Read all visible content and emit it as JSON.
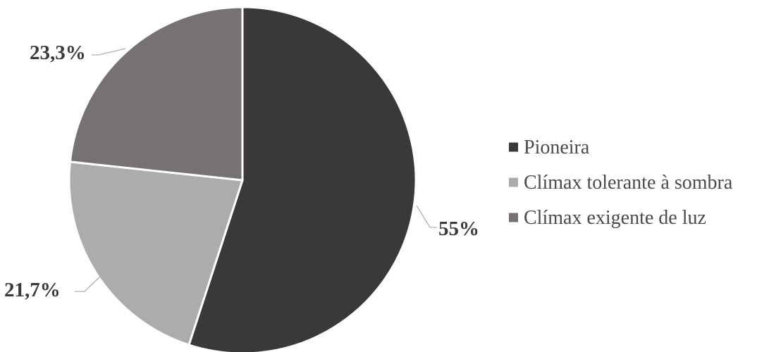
{
  "chart_data": {
    "type": "pie",
    "title": "",
    "start_angle_deg": 0,
    "direction": "clockwise",
    "legend_position": "right",
    "series": [
      {
        "name": "Pioneira",
        "value": 55,
        "label": "55%",
        "color": "#3a3938"
      },
      {
        "name": "Clímax tolerante à sombra",
        "value": 21.7,
        "label": "21,7%",
        "color": "#aeacab"
      },
      {
        "name": "Clímax exigente de luz",
        "value": 23.3,
        "label": "23,3%",
        "color": "#767271"
      }
    ]
  }
}
